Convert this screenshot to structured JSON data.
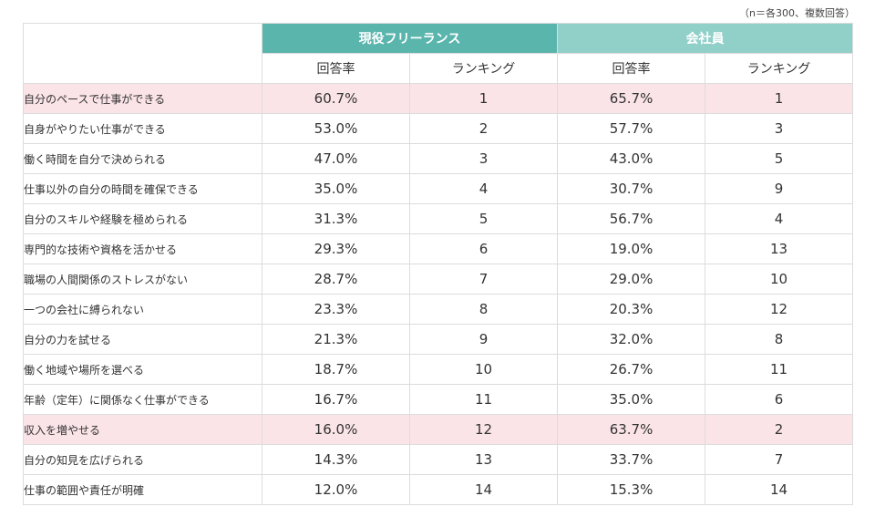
{
  "note": "（n＝各300、複数回答）",
  "groups": {
    "freelance": "現役フリーランス",
    "employee": "会社員"
  },
  "subheaders": {
    "rate": "回答率",
    "rank": "ランキング"
  },
  "highlight_color": "#fbe4e8",
  "rows": [
    {
      "label": "自分のペースで仕事ができる",
      "f_rate": "60.7%",
      "f_rank": "1",
      "e_rate": "65.7%",
      "e_rank": "1",
      "highlight": true
    },
    {
      "label": "自身がやりたい仕事ができる",
      "f_rate": "53.0%",
      "f_rank": "2",
      "e_rate": "57.7%",
      "e_rank": "3",
      "highlight": false
    },
    {
      "label": "働く時間を自分で決められる",
      "f_rate": "47.0%",
      "f_rank": "3",
      "e_rate": "43.0%",
      "e_rank": "5",
      "highlight": false
    },
    {
      "label": "仕事以外の自分の時間を確保できる",
      "f_rate": "35.0%",
      "f_rank": "4",
      "e_rate": "30.7%",
      "e_rank": "9",
      "highlight": false
    },
    {
      "label": "自分のスキルや経験を極められる",
      "f_rate": "31.3%",
      "f_rank": "5",
      "e_rate": "56.7%",
      "e_rank": "4",
      "highlight": false
    },
    {
      "label": "専門的な技術や資格を活かせる",
      "f_rate": "29.3%",
      "f_rank": "6",
      "e_rate": "19.0%",
      "e_rank": "13",
      "highlight": false
    },
    {
      "label": "職場の人間関係のストレスがない",
      "f_rate": "28.7%",
      "f_rank": "7",
      "e_rate": "29.0%",
      "e_rank": "10",
      "highlight": false
    },
    {
      "label": "一つの会社に縛られない",
      "f_rate": "23.3%",
      "f_rank": "8",
      "e_rate": "20.3%",
      "e_rank": "12",
      "highlight": false
    },
    {
      "label": "自分の力を試せる",
      "f_rate": "21.3%",
      "f_rank": "9",
      "e_rate": "32.0%",
      "e_rank": "8",
      "highlight": false
    },
    {
      "label": "働く地域や場所を選べる",
      "f_rate": "18.7%",
      "f_rank": "10",
      "e_rate": "26.7%",
      "e_rank": "11",
      "highlight": false
    },
    {
      "label": "年齢（定年）に関係なく仕事ができる",
      "f_rate": "16.7%",
      "f_rank": "11",
      "e_rate": "35.0%",
      "e_rank": "6",
      "highlight": false
    },
    {
      "label": "収入を増やせる",
      "f_rate": "16.0%",
      "f_rank": "12",
      "e_rate": "63.7%",
      "e_rank": "2",
      "highlight": true
    },
    {
      "label": "自分の知見を広げられる",
      "f_rate": "14.3%",
      "f_rank": "13",
      "e_rate": "33.7%",
      "e_rank": "7",
      "highlight": false
    },
    {
      "label": "仕事の範囲や責任が明確",
      "f_rate": "12.0%",
      "f_rank": "14",
      "e_rate": "15.3%",
      "e_rank": "14",
      "highlight": false
    }
  ]
}
